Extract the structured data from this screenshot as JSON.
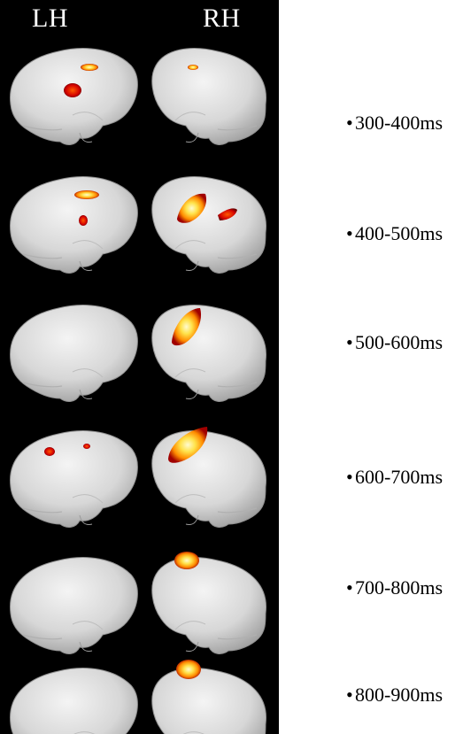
{
  "columns": {
    "left": "LH",
    "right": "RH"
  },
  "time_windows": [
    "300-400ms",
    "400-500ms",
    "500-600ms",
    "600-700ms",
    "700-800ms",
    "800-900ms"
  ],
  "colors": {
    "background": "#000000",
    "brain": "#e0e0e0",
    "activation_high": "#fff6a0",
    "activation_mid": "#ff9a00",
    "activation_low": "#b80000"
  }
}
